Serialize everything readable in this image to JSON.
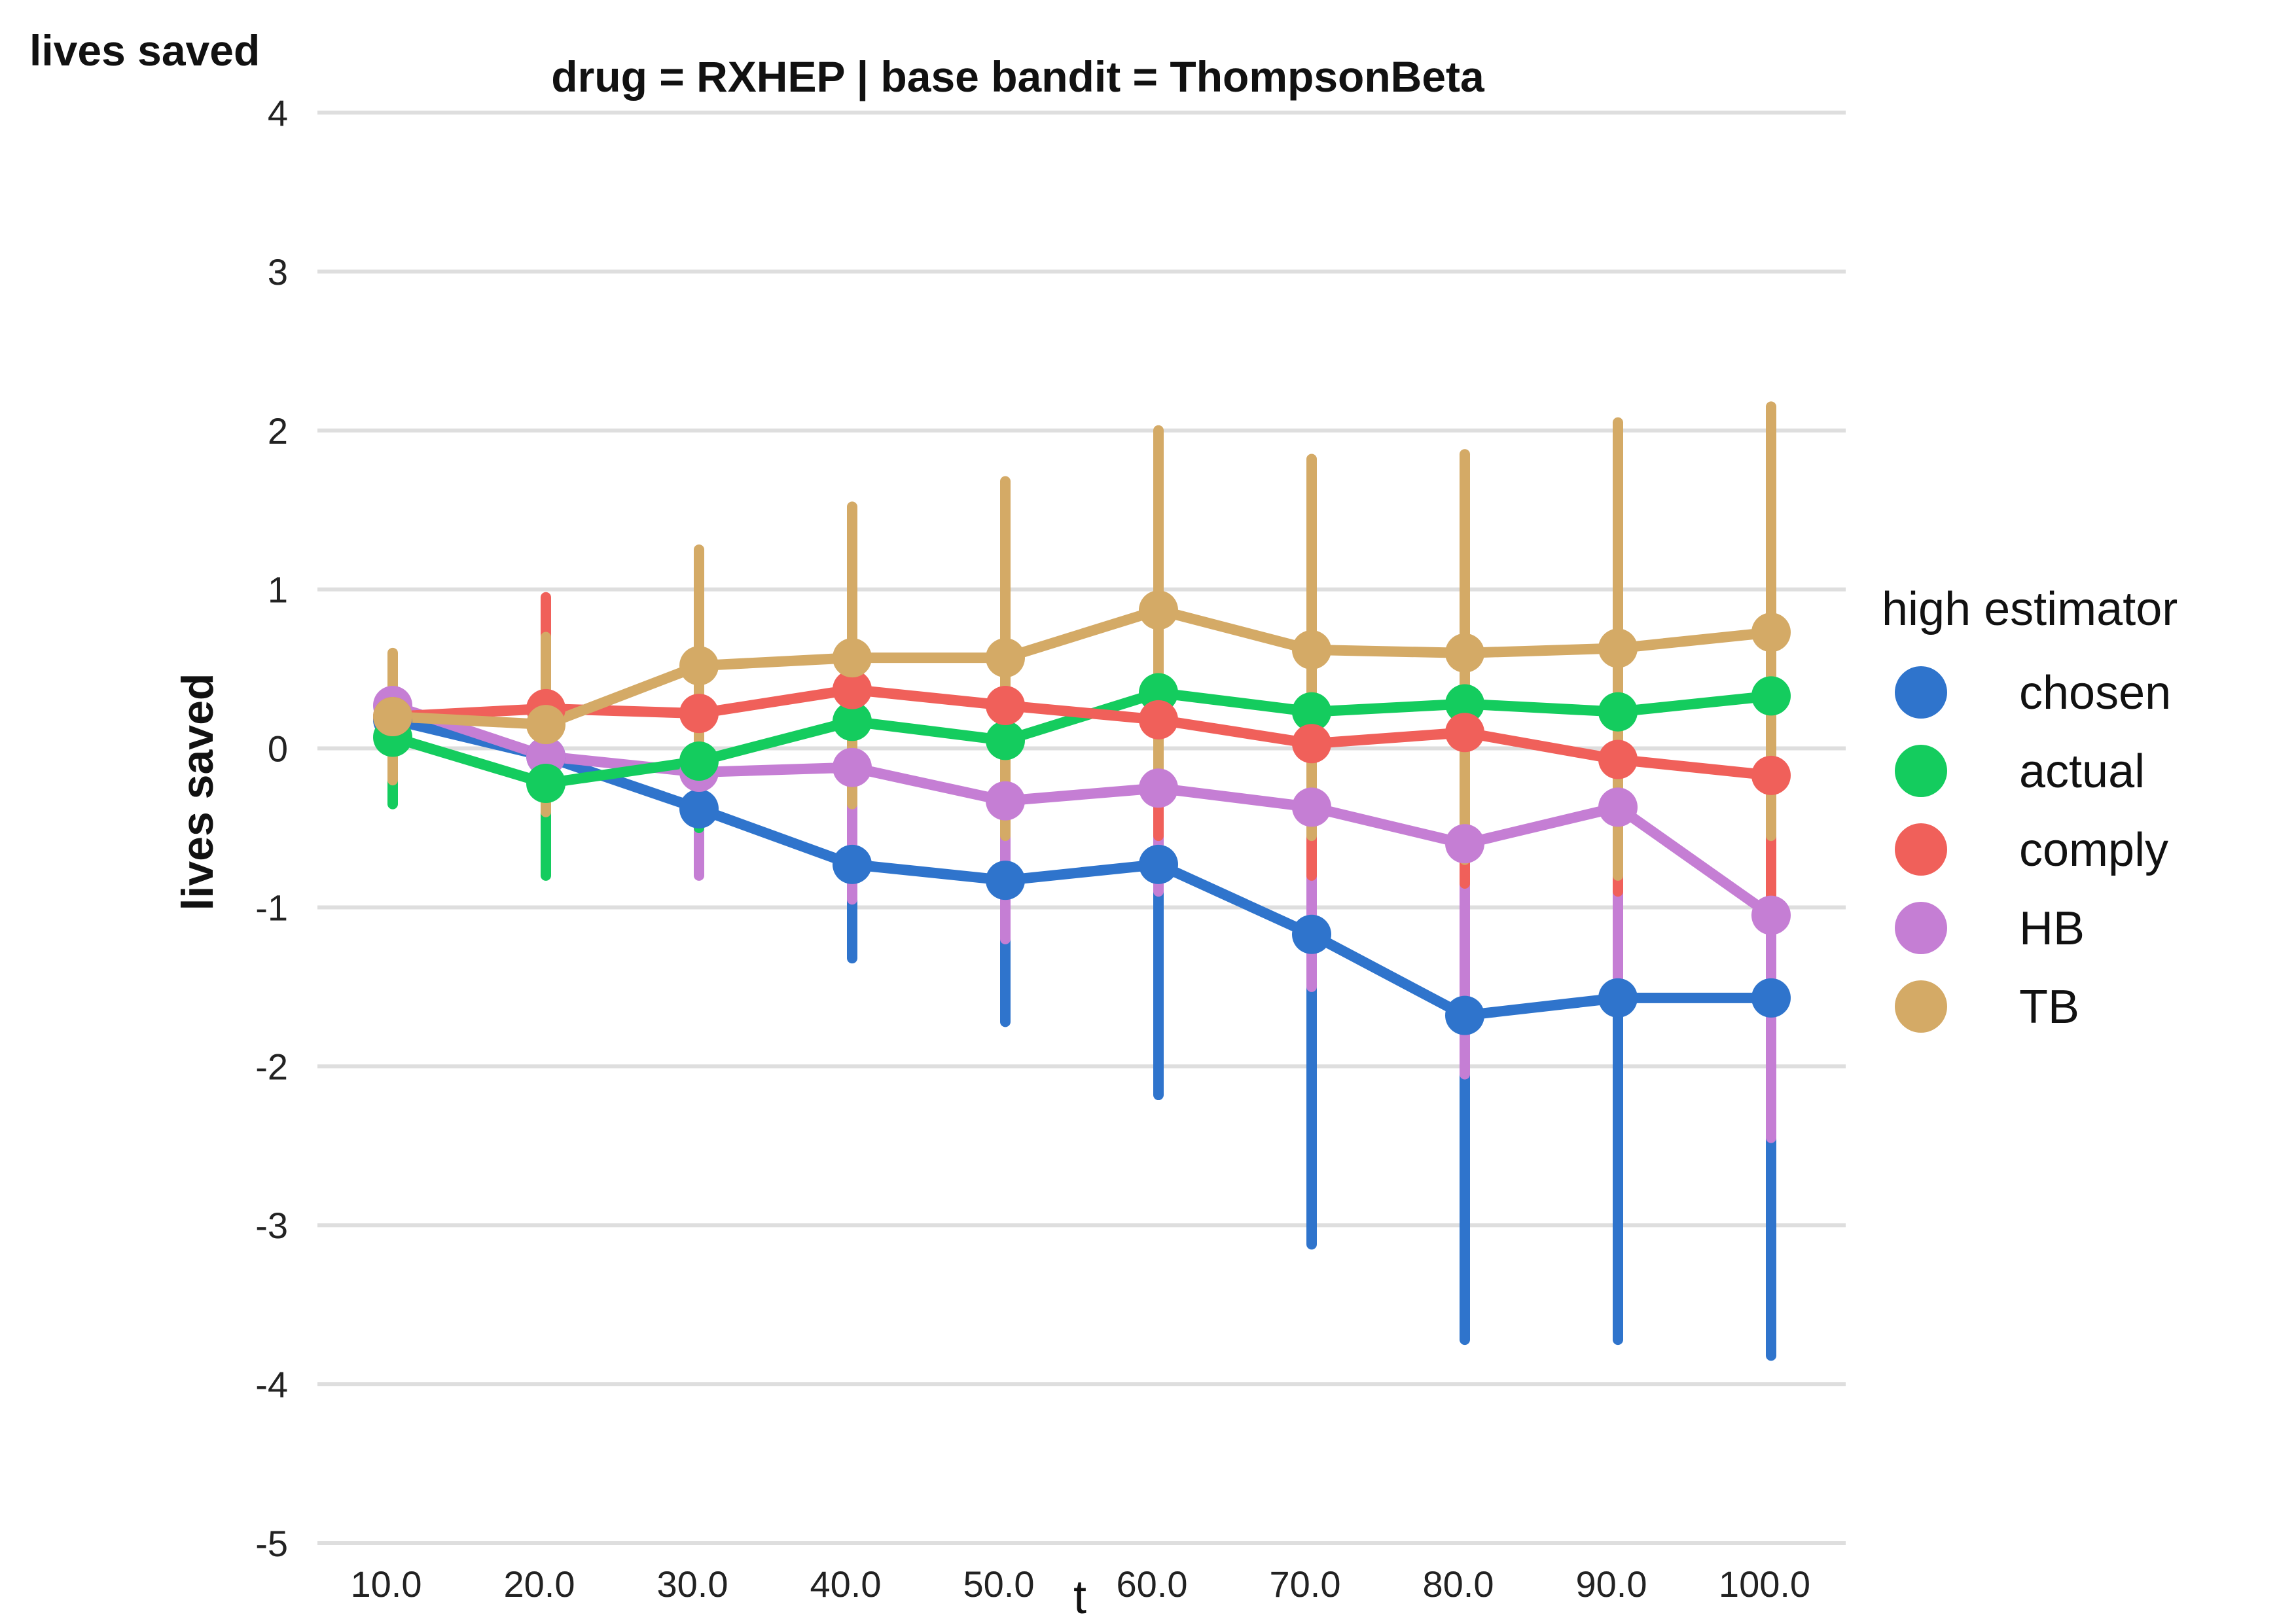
{
  "chart_data": {
    "type": "line",
    "title": "drug = RXHEP | base bandit = ThompsonBeta",
    "corner_label": "lives saved",
    "ylabel": "lives saved",
    "xlabel": "t",
    "categories": [
      "10.0",
      "20.0",
      "30.0",
      "40.0",
      "50.0",
      "60.0",
      "70.0",
      "80.0",
      "90.0",
      "100.0"
    ],
    "ylim": [
      -5,
      4
    ],
    "yticks": [
      "4",
      "3",
      "2",
      "1",
      "0",
      "-1",
      "-2",
      "-3",
      "-4",
      "-5"
    ],
    "grid": true,
    "legend": {
      "title": "high estimator",
      "placement": "right"
    },
    "series": [
      {
        "name": "TB",
        "color": "#d4aa66",
        "values": [
          0.2,
          0.15,
          0.52,
          0.57,
          0.57,
          0.87,
          0.62,
          0.6,
          0.63,
          0.73
        ],
        "lower": [
          -0.2,
          -0.4,
          -0.2,
          -0.35,
          -0.55,
          -0.3,
          -0.55,
          -0.7,
          -0.8,
          -0.55
        ],
        "upper": [
          0.6,
          0.7,
          1.25,
          1.52,
          1.68,
          2.0,
          1.82,
          1.85,
          2.05,
          2.15
        ]
      },
      {
        "name": "HB",
        "color": "#c57ed4",
        "values": [
          0.27,
          -0.05,
          -0.15,
          -0.12,
          -0.33,
          -0.25,
          -0.37,
          -0.6,
          -0.37,
          -1.05
        ],
        "lower": [
          0.0,
          -0.5,
          -0.8,
          -0.95,
          -1.2,
          -0.9,
          -1.5,
          -2.05,
          -1.65,
          -2.45
        ],
        "upper": [
          0.5,
          0.25,
          0.35,
          0.4,
          0.2,
          0.3,
          0.4,
          0.3,
          0.5,
          0.3
        ]
      },
      {
        "name": "comply",
        "color": "#f0605a",
        "values": [
          0.2,
          0.25,
          0.22,
          0.37,
          0.27,
          0.18,
          0.03,
          0.1,
          -0.07,
          -0.17
        ],
        "lower": [
          -0.05,
          -0.3,
          -0.3,
          -0.3,
          -0.5,
          -0.55,
          -0.8,
          -0.85,
          -0.9,
          -1.05
        ],
        "upper": [
          0.55,
          0.95,
          0.8,
          1.0,
          1.0,
          1.0,
          0.95,
          1.1,
          0.8,
          0.7
        ]
      },
      {
        "name": "actual",
        "color": "#14cc5e",
        "values": [
          0.07,
          -0.22,
          -0.08,
          0.17,
          0.05,
          0.35,
          0.23,
          0.28,
          0.23,
          0.33
        ],
        "lower": [
          -0.35,
          -0.8,
          -0.5,
          -0.3,
          -0.5,
          -0.35,
          -0.4,
          -0.45,
          -0.5,
          -0.5
        ],
        "upper": [
          0.5,
          0.35,
          0.4,
          0.7,
          0.65,
          1.0,
          0.9,
          1.0,
          1.0,
          1.15
        ]
      },
      {
        "name": "chosen",
        "color": "#2f74cc",
        "values": [
          0.18,
          -0.05,
          -0.38,
          -0.73,
          -0.83,
          -0.73,
          -1.17,
          -1.68,
          -1.57,
          -1.57
        ],
        "lower": [
          0.05,
          -0.3,
          -0.7,
          -1.32,
          -1.72,
          -2.18,
          -3.12,
          -3.72,
          -3.72,
          -3.82
        ],
        "upper": [
          0.35,
          0.2,
          -0.05,
          -0.15,
          -0.2,
          0.0,
          0.0,
          0.0,
          0.0,
          0.0
        ]
      }
    ],
    "legend_order": [
      "chosen",
      "actual",
      "comply",
      "HB",
      "TB"
    ]
  }
}
